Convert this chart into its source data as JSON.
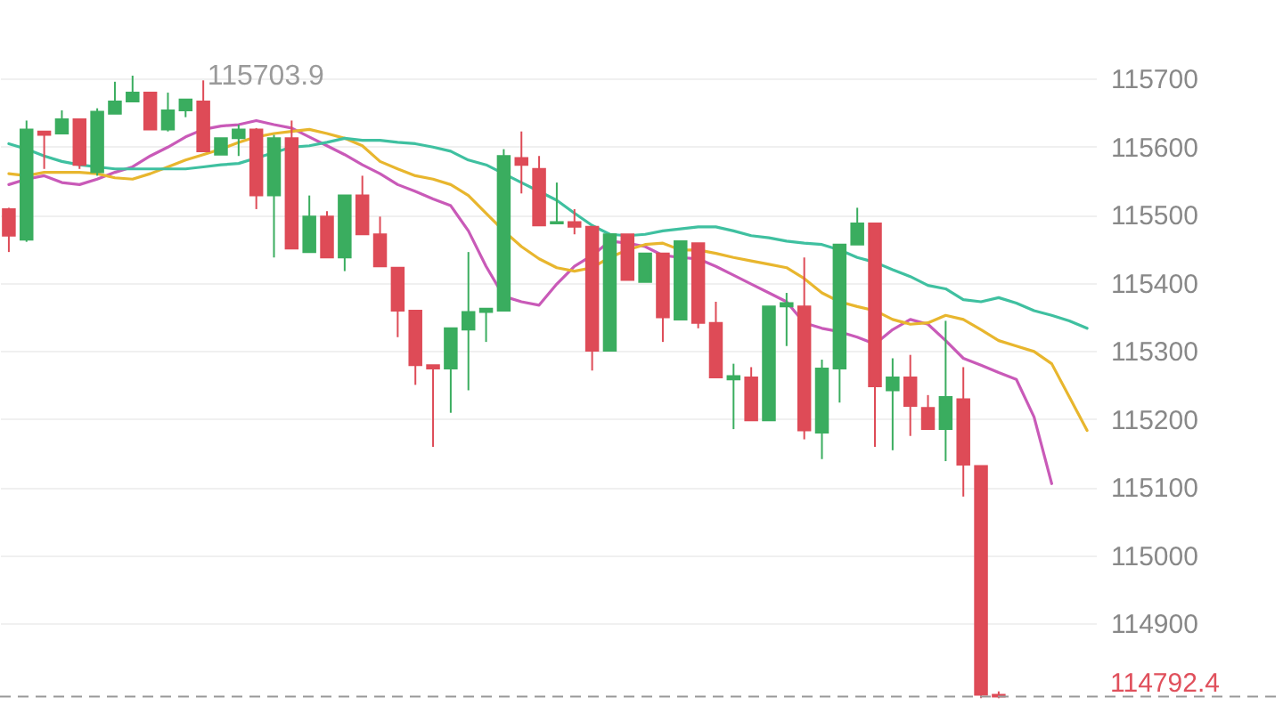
{
  "chart_data": {
    "type": "candlestick",
    "categories": [
      null,
      null,
      null,
      null,
      null,
      null,
      null,
      null,
      null,
      null,
      null,
      null,
      null,
      null,
      null,
      null,
      null,
      null,
      null,
      null,
      null,
      null,
      null,
      null,
      null,
      null,
      null,
      null,
      null,
      null,
      null,
      null,
      null,
      null,
      null,
      null,
      null,
      null,
      null,
      null,
      null,
      null,
      null,
      null,
      null,
      null,
      null,
      null,
      null,
      null,
      null,
      null,
      null,
      null,
      null,
      null,
      null,
      null,
      null,
      null,
      null,
      null
    ],
    "ohlc": [
      [
        115508,
        115510,
        115445,
        115469
      ],
      [
        115463,
        115638,
        115460,
        115625
      ],
      [
        115622,
        115622,
        115567,
        115617
      ],
      [
        115619,
        115653,
        115619,
        115640
      ],
      [
        115640,
        115640,
        115567,
        115573
      ],
      [
        115562,
        115656,
        115557,
        115651
      ],
      [
        115648,
        115695,
        115648,
        115666
      ],
      [
        115666,
        115703.9,
        115666,
        115679
      ],
      [
        115679,
        115679,
        115625,
        115625
      ],
      [
        115625,
        115679,
        115622,
        115653
      ],
      [
        115653,
        115669,
        115643,
        115669
      ],
      [
        115666,
        115697,
        115593,
        115593
      ],
      [
        115588,
        115612,
        115588,
        115612
      ],
      [
        115612,
        115632,
        115586,
        115625
      ],
      [
        115625,
        115627,
        115508,
        115528
      ],
      [
        115528,
        115617,
        115437,
        115612
      ],
      [
        115612,
        115638,
        115450,
        115450
      ],
      [
        115445,
        115528,
        115445,
        115497
      ],
      [
        115497,
        115505,
        115437,
        115437
      ],
      [
        115437,
        115528,
        115417,
        115528
      ],
      [
        115528,
        115557,
        115471,
        115471
      ],
      [
        115471,
        115497,
        115424,
        115424
      ],
      [
        115422,
        115422,
        115320,
        115359
      ],
      [
        115359,
        115359,
        115250,
        115279
      ],
      [
        115279,
        115279,
        115159,
        115274
      ],
      [
        115274,
        115333,
        115209,
        115333
      ],
      [
        115331,
        115445,
        115242,
        115357
      ],
      [
        115357,
        115362,
        115313,
        115362
      ],
      [
        115359,
        115596,
        115359,
        115586
      ],
      [
        115583,
        115622,
        115531,
        115573
      ],
      [
        115567,
        115586,
        115484,
        115484
      ],
      [
        115487,
        115547,
        115487,
        115489
      ],
      [
        115489,
        115508,
        115471,
        115482
      ],
      [
        115482,
        115482,
        115271,
        115300
      ],
      [
        115300,
        115471,
        115300,
        115471
      ],
      [
        115471,
        115471,
        115404,
        115404
      ],
      [
        115401,
        115443,
        115401,
        115443
      ],
      [
        115443,
        115443,
        115313,
        115349
      ],
      [
        115346,
        115461,
        115346,
        115461
      ],
      [
        115458,
        115458,
        115333,
        115341
      ],
      [
        115341,
        115372,
        115261,
        115261
      ],
      [
        115258,
        115281,
        115185,
        115263
      ],
      [
        115261,
        115276,
        115198,
        115198
      ],
      [
        115198,
        115365,
        115198,
        115365
      ],
      [
        115365,
        115385,
        115307,
        115370
      ],
      [
        115365,
        115437,
        115170,
        115183
      ],
      [
        115180,
        115287,
        115141,
        115274
      ],
      [
        115274,
        115456,
        115224,
        115456
      ],
      [
        115456,
        115510,
        115456,
        115487
      ],
      [
        115487,
        115487,
        115159,
        115248
      ],
      [
        115242,
        115289,
        115154,
        115261
      ],
      [
        115261,
        115294,
        115175,
        115219
      ],
      [
        115216,
        115235,
        115185,
        115185
      ],
      [
        115185,
        115344,
        115138,
        115232
      ],
      [
        115229,
        115276,
        115086,
        115133
      ],
      [
        115131,
        115131,
        114790,
        114795
      ],
      [
        114795,
        114800,
        114790,
        114792.4
      ],
      null,
      null,
      null,
      null,
      null
    ],
    "colors": [
      "#de4b57",
      "#3aad5f",
      "#de4b57",
      "#3aad5f",
      "#de4b57",
      "#3aad5f",
      "#3aad5f",
      "#3aad5f",
      "#de4b57",
      "#3aad5f",
      "#3aad5f",
      "#de4b57",
      "#3aad5f",
      "#3aad5f",
      "#de4b57",
      "#3aad5f",
      "#de4b57",
      "#3aad5f",
      "#de4b57",
      "#3aad5f",
      "#de4b57",
      "#de4b57",
      "#de4b57",
      "#de4b57",
      "#de4b57",
      "#3aad5f",
      "#3aad5f",
      "#3aad5f",
      "#3aad5f",
      "#de4b57",
      "#de4b57",
      "#3aad5f",
      "#de4b57",
      "#de4b57",
      "#3aad5f",
      "#de4b57",
      "#3aad5f",
      "#de4b57",
      "#3aad5f",
      "#de4b57",
      "#de4b57",
      "#3aad5f",
      "#de4b57",
      "#3aad5f",
      "#3aad5f",
      "#de4b57",
      "#3aad5f",
      "#3aad5f",
      "#3aad5f",
      "#de4b57",
      "#3aad5f",
      "#de4b57",
      "#de4b57",
      "#3aad5f",
      "#de4b57",
      "#de4b57",
      "#de4b57",
      null,
      null,
      null,
      null,
      null
    ],
    "series": [
      {
        "type": "line",
        "color": "#c95ab8",
        "values": [
          115544,
          115552,
          115557,
          115547,
          115544,
          115552,
          115562,
          115570,
          115586,
          115599,
          115614,
          115625,
          115630,
          115632,
          115638,
          115632,
          115627,
          115614,
          115601,
          115588,
          115573,
          115560,
          115544,
          115534,
          115523,
          115513,
          115476,
          115424,
          115380,
          115372,
          115367,
          115398,
          115424,
          115440,
          115461,
          115458,
          115453,
          115440,
          115437,
          115435,
          115424,
          115411,
          115398,
          115385,
          115372,
          115341,
          115333,
          115328,
          115320,
          115310,
          115331,
          115346,
          115339,
          115315,
          115289,
          115279,
          115268,
          115258,
          115203,
          115105,
          null,
          null
        ]
      },
      {
        "type": "line",
        "color": "#e8b62e",
        "values": [
          115560,
          115557,
          115562,
          115562,
          115562,
          115560,
          115554,
          115552,
          115560,
          115570,
          115580,
          115588,
          115596,
          115606,
          115614,
          115619,
          115622,
          115625,
          115619,
          115612,
          115601,
          115578,
          115567,
          115557,
          115552,
          115544,
          115528,
          115502,
          115476,
          115453,
          115435,
          115422,
          115417,
          115422,
          115437,
          115448,
          115456,
          115458,
          115448,
          115448,
          115443,
          115437,
          115432,
          115427,
          115422,
          115406,
          115385,
          115372,
          115365,
          115359,
          115346,
          115339,
          115341,
          115352,
          115346,
          115331,
          115315,
          115307,
          115299,
          115281,
          115232,
          115183
        ]
      },
      {
        "type": "line",
        "color": "#3fc0a0",
        "values": [
          115604,
          115596,
          115586,
          115578,
          115573,
          115570,
          115567,
          115567,
          115567,
          115567,
          115567,
          115570,
          115573,
          115575,
          115583,
          115591,
          115599,
          115601,
          115606,
          115612,
          115609,
          115609,
          115606,
          115604,
          115599,
          115593,
          115580,
          115573,
          115560,
          115547,
          115534,
          115521,
          115502,
          115484,
          115471,
          115469,
          115471,
          115476,
          115479,
          115482,
          115482,
          115476,
          115469,
          115466,
          115461,
          115458,
          115456,
          115448,
          115437,
          115430,
          115419,
          115409,
          115396,
          115391,
          115375,
          115372,
          115378,
          115370,
          115359,
          115352,
          115344,
          115333
        ]
      }
    ],
    "ylim": [
      114780,
      115815
    ],
    "yticks": [
      114900,
      115000,
      115100,
      115200,
      115300,
      115400,
      115500,
      115600,
      115700
    ],
    "grid": "y",
    "tick_labels": "y",
    "annotations": [
      "115703.9"
    ],
    "ref_lines": [
      {
        "axis": "y",
        "value": 114792.4,
        "label": "114792.4",
        "line_style": "dashed"
      }
    ]
  }
}
